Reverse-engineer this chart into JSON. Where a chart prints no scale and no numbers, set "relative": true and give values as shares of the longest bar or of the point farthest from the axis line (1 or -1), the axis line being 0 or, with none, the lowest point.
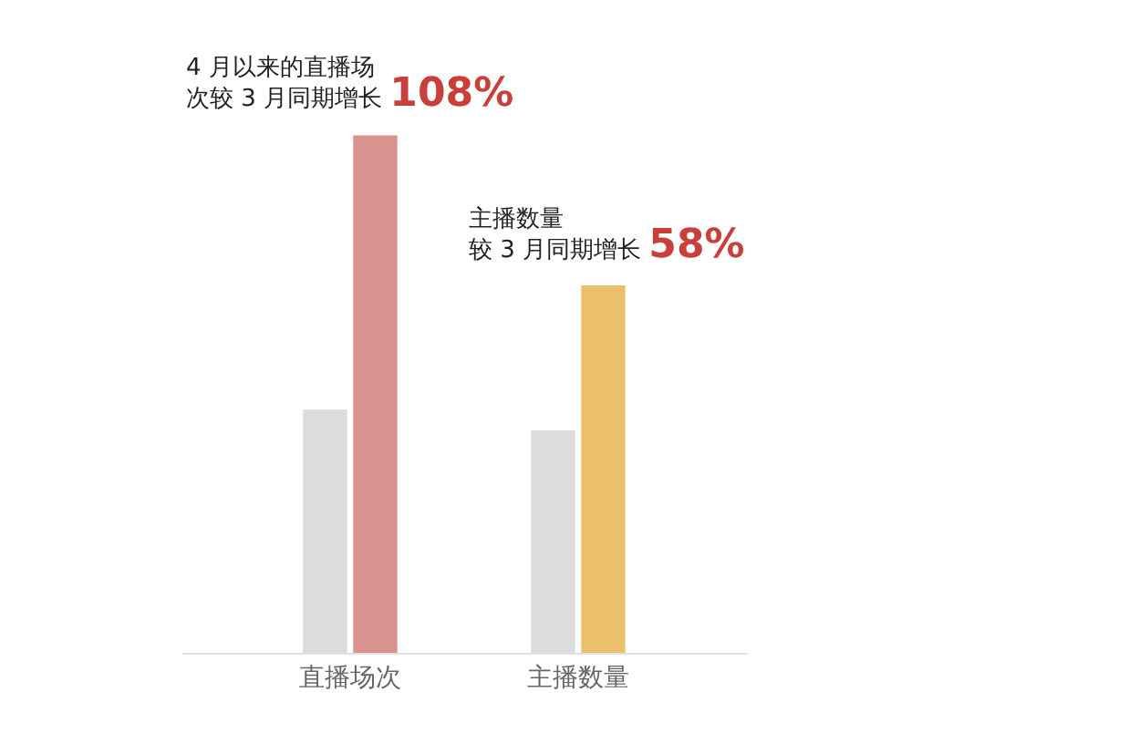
{
  "chart_data": {
    "type": "bar",
    "relative": true,
    "categories": [
      "直播场次",
      "主播数量"
    ],
    "series": [
      {
        "color": "#dcdcdc",
        "values": [
          0.47,
          0.43
        ]
      },
      {
        "color": "#d9938e",
        "colors": [
          "#d9938e",
          "#ecc06b"
        ],
        "values": [
          1,
          0.71
        ]
      }
    ],
    "annotations": [
      {
        "text": "4 月以来的直播场次较 3 月同期增长 108%",
        "x": "直播场次",
        "y": 1
      },
      {
        "text": "主播数量较 3 月同期增长 58%",
        "x": "主播数量",
        "y": 0.71
      }
    ]
  }
}
